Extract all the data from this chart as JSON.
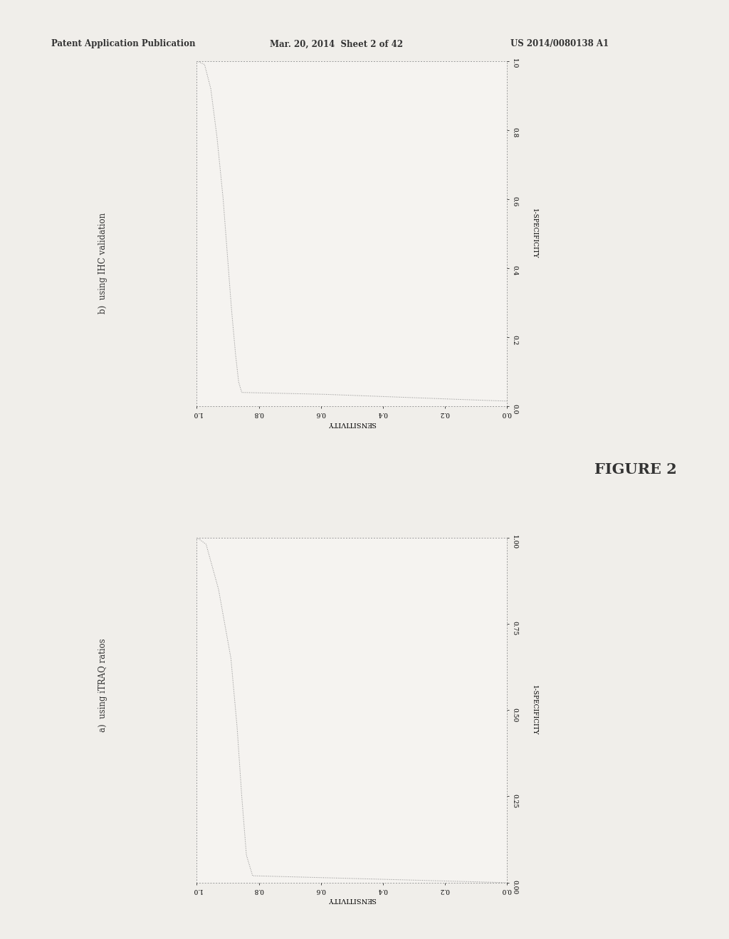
{
  "background_color": "#f0eeea",
  "plot_bg": "#f5f3f0",
  "header_left": "Patent Application Publication",
  "header_mid": "Mar. 20, 2014  Sheet 2 of 42",
  "header_right": "US 2014/0080138 A1",
  "figure_label": "FIGURE 2",
  "plot_a_label": "a)  using iTRAQ ratios",
  "plot_b_label": "b)  using IHC validation",
  "xlabel": "SENSITIVITY",
  "ylabel": "1-SPECIFICITY",
  "x_ticks": [
    1.0,
    0.8,
    0.6,
    0.4,
    0.2,
    0.0
  ],
  "x_tick_labels": [
    "1.0",
    "0.8",
    "0.6",
    "0.4",
    "0.2",
    "0.0"
  ],
  "y_ticks_a": [
    0.0,
    0.25,
    0.5,
    0.75,
    1.0
  ],
  "y_tick_labels_a": [
    "0.00",
    "0.25",
    "0.50",
    "0.75",
    "1.00"
  ],
  "y_ticks_b": [
    0.0,
    0.2,
    0.4,
    0.6,
    0.8,
    1.0
  ],
  "y_tick_labels_b": [
    "0.0",
    "0.2",
    "0.4",
    "0.6",
    "0.8",
    "1.0"
  ],
  "line_color": "#888888",
  "line_width": 0.7,
  "border_color": "#999999",
  "text_color": "#333333"
}
